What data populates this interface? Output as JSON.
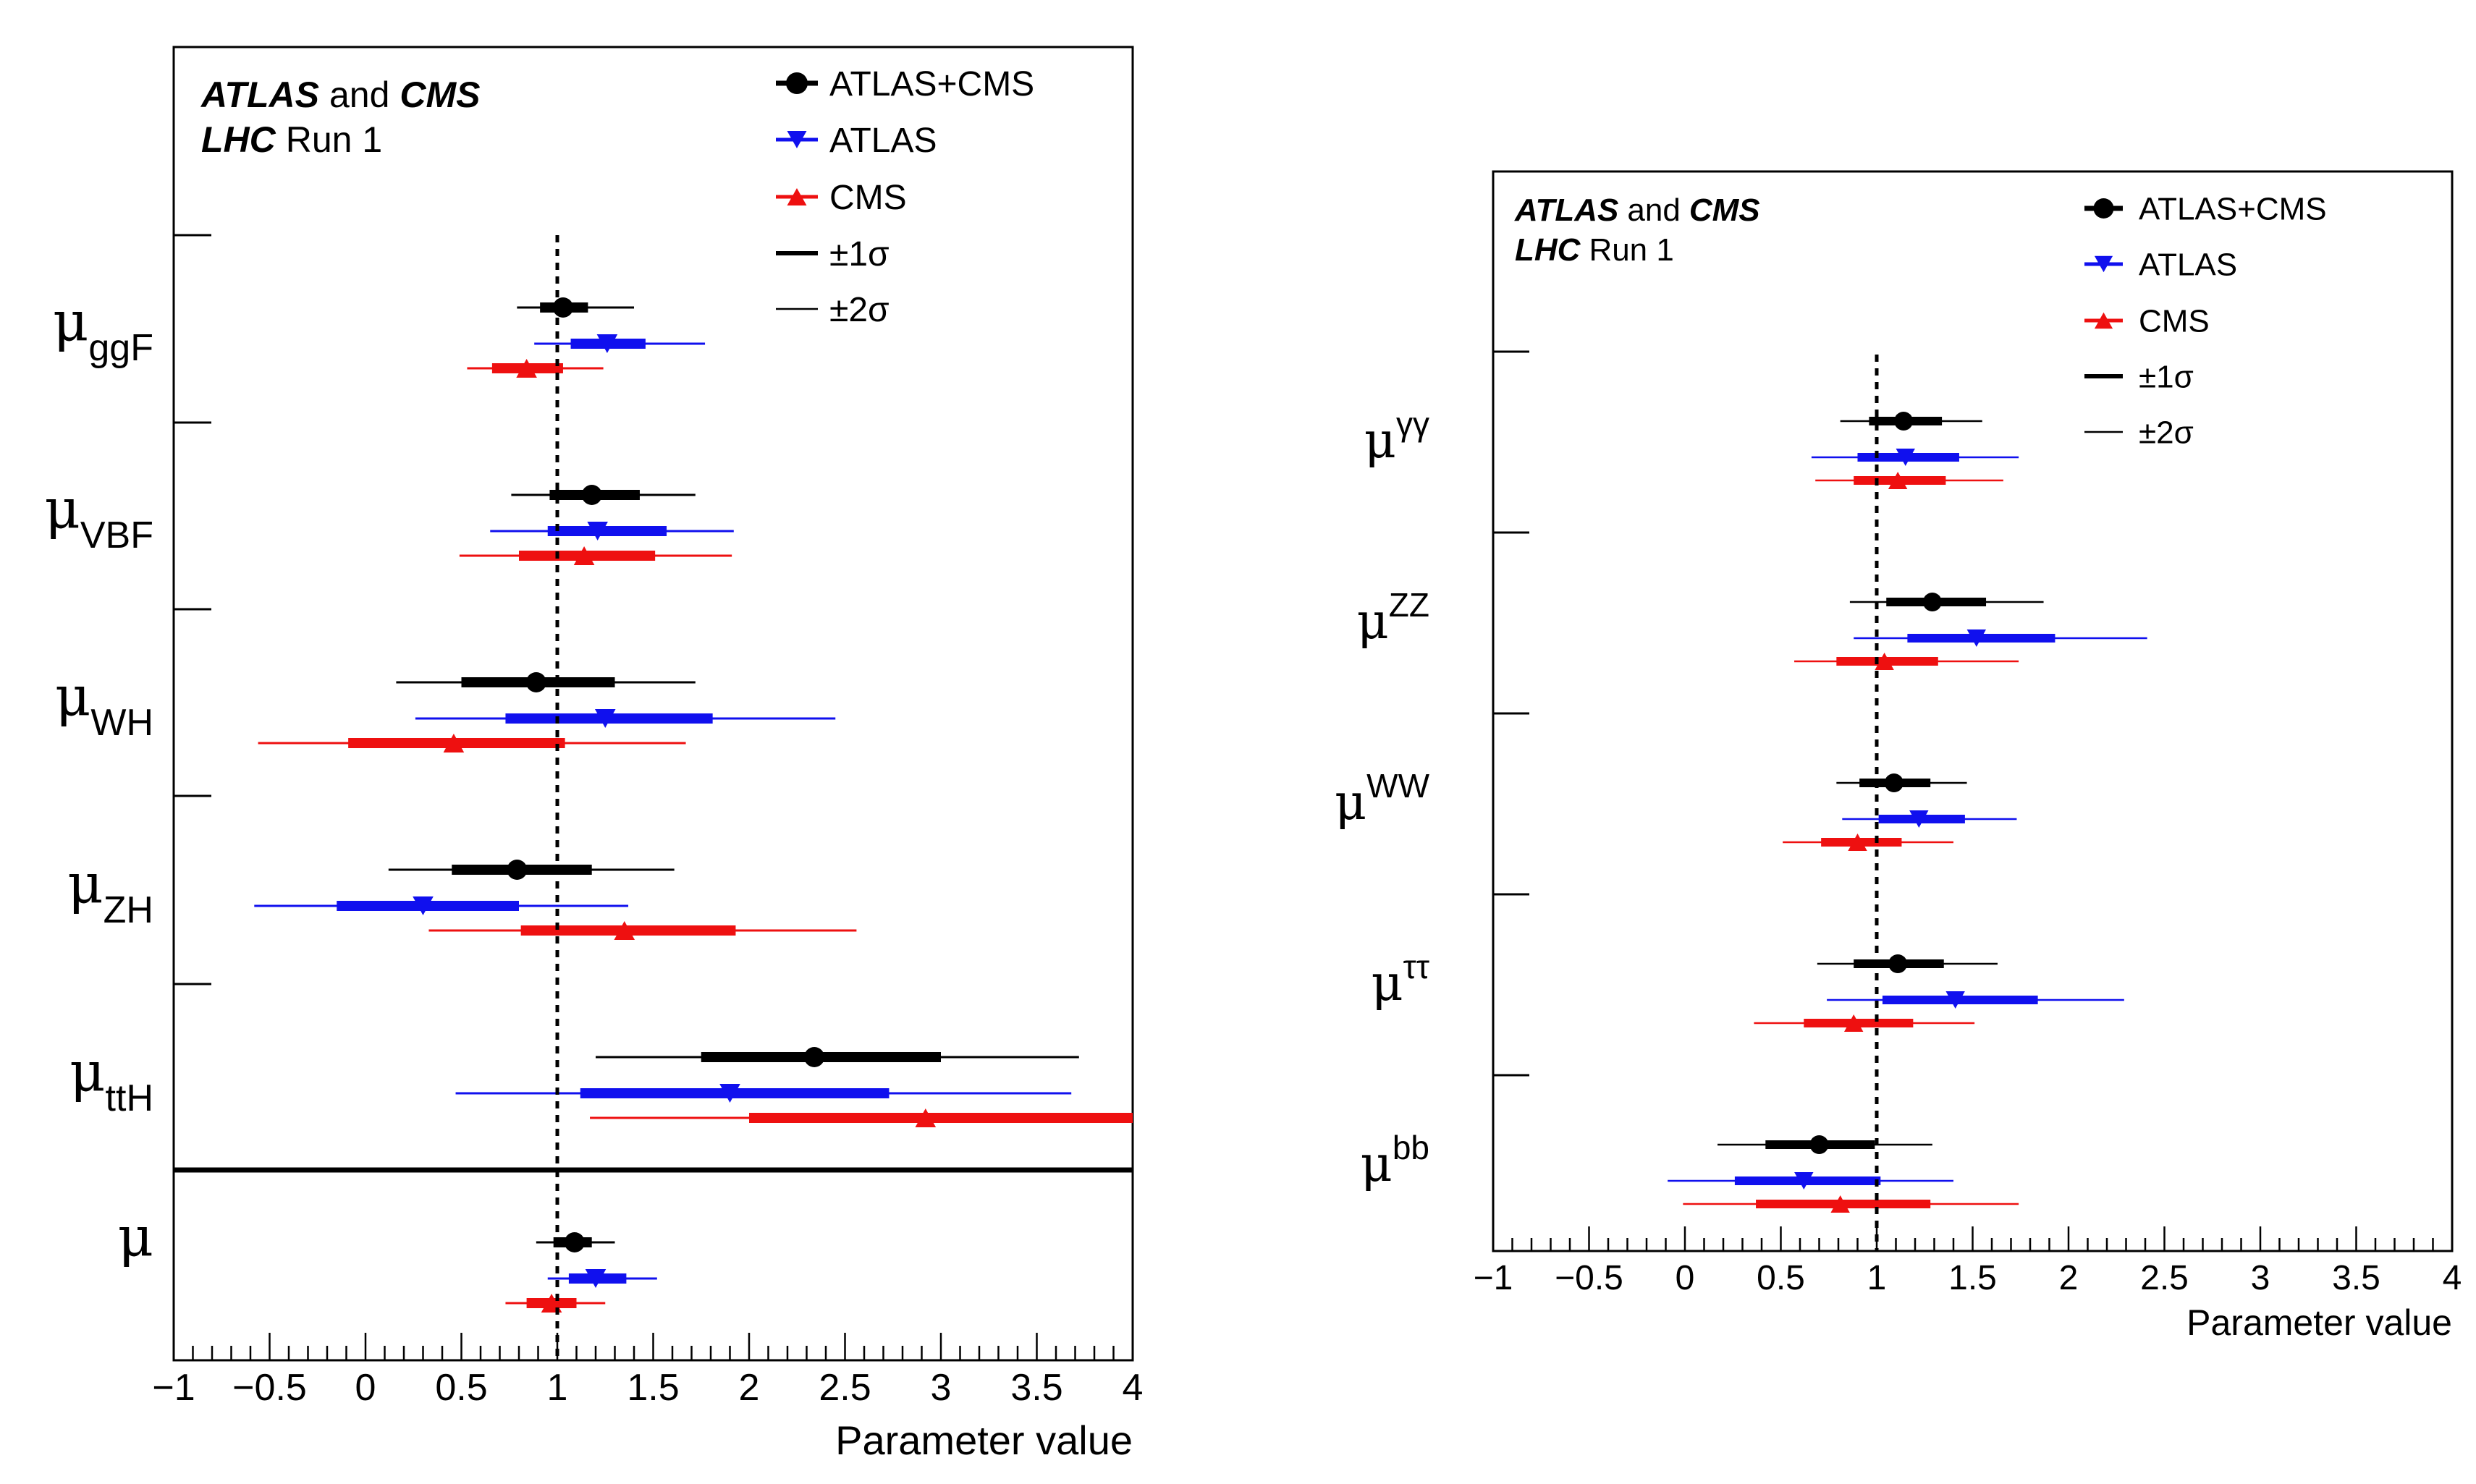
{
  "chart_data": [
    {
      "type": "scatter",
      "title_line1_bold": "ATLAS",
      "title_line1_mid": "and",
      "title_line1_bold2": "CMS",
      "title_line2_bold": "LHC",
      "title_line2_rest": "Run 1",
      "xlabel": "Parameter value",
      "xlim": [
        -1,
        4
      ],
      "xticks": [
        "−1",
        "−0.5",
        "0",
        "0.5",
        "1",
        "1.5",
        "2",
        "2.5",
        "3",
        "3.5",
        "4"
      ],
      "sm_line": 1,
      "legend": {
        "combined": "ATLAS+CMS",
        "atlas": "ATLAS",
        "cms": "CMS",
        "one_sigma": "±1σ",
        "two_sigma": "±2σ"
      },
      "colors": {
        "combined": "#000000",
        "atlas": "#1010ee",
        "cms": "#ee1010"
      },
      "parameters": [
        {
          "base": "μ",
          "sub": "ggF",
          "sup": "",
          "combined": {
            "v": 1.03,
            "s1": [
              0.91,
              1.16
            ],
            "s2": [
              0.79,
              1.4
            ]
          },
          "atlas": {
            "v": 1.26,
            "s1": [
              1.07,
              1.46
            ],
            "s2": [
              0.88,
              1.77
            ]
          },
          "cms": {
            "v": 0.84,
            "s1": [
              0.66,
              1.03
            ],
            "s2": [
              0.53,
              1.24
            ]
          }
        },
        {
          "base": "μ",
          "sub": "VBF",
          "sup": "",
          "combined": {
            "v": 1.18,
            "s1": [
              0.96,
              1.43
            ],
            "s2": [
              0.76,
              1.72
            ]
          },
          "atlas": {
            "v": 1.21,
            "s1": [
              0.95,
              1.57
            ],
            "s2": [
              0.65,
              1.92
            ]
          },
          "cms": {
            "v": 1.14,
            "s1": [
              0.8,
              1.51
            ],
            "s2": [
              0.49,
              1.91
            ]
          }
        },
        {
          "base": "μ",
          "sub": "WH",
          "sup": "",
          "combined": {
            "v": 0.89,
            "s1": [
              0.5,
              1.3
            ],
            "s2": [
              0.16,
              1.72
            ]
          },
          "atlas": {
            "v": 1.25,
            "s1": [
              0.73,
              1.81
            ],
            "s2": [
              0.26,
              2.45
            ]
          },
          "cms": {
            "v": 0.46,
            "s1": [
              -0.09,
              1.04
            ],
            "s2": [
              -0.56,
              1.67
            ]
          }
        },
        {
          "base": "μ",
          "sub": "ZH",
          "sup": "",
          "combined": {
            "v": 0.79,
            "s1": [
              0.45,
              1.18
            ],
            "s2": [
              0.12,
              1.61
            ]
          },
          "atlas": {
            "v": 0.3,
            "s1": [
              -0.15,
              0.8
            ],
            "s2": [
              -0.58,
              1.37
            ]
          },
          "cms": {
            "v": 1.35,
            "s1": [
              0.81,
              1.93
            ],
            "s2": [
              0.33,
              2.56
            ]
          }
        },
        {
          "base": "μ",
          "sub": "ttH",
          "sup": "",
          "combined": {
            "v": 2.34,
            "s1": [
              1.75,
              3.0
            ],
            "s2": [
              1.2,
              3.72
            ]
          },
          "atlas": {
            "v": 1.9,
            "s1": [
              1.12,
              2.73
            ],
            "s2": [
              0.47,
              3.68
            ]
          },
          "cms": {
            "v": 2.92,
            "s1": [
              2.0,
              4.0
            ],
            "s2": [
              1.17,
              4.0
            ]
          }
        },
        {
          "base": "μ",
          "sub": "",
          "sup": "",
          "combined": {
            "v": 1.09,
            "s1": [
              0.98,
              1.18
            ],
            "s2": [
              0.89,
              1.3
            ]
          },
          "atlas": {
            "v": 1.2,
            "s1": [
              1.06,
              1.36
            ],
            "s2": [
              0.95,
              1.52
            ]
          },
          "cms": {
            "v": 0.97,
            "s1": [
              0.84,
              1.1
            ],
            "s2": [
              0.73,
              1.25
            ]
          }
        }
      ]
    },
    {
      "type": "scatter",
      "title_line1_bold": "ATLAS",
      "title_line1_mid": "and",
      "title_line1_bold2": "CMS",
      "title_line2_bold": "LHC",
      "title_line2_rest": "Run 1",
      "xlabel": "Parameter value",
      "xlim": [
        -1,
        4
      ],
      "xticks": [
        "−1",
        "−0.5",
        "0",
        "0.5",
        "1",
        "1.5",
        "2",
        "2.5",
        "3",
        "3.5",
        "4"
      ],
      "sm_line": 1,
      "legend": {
        "combined": "ATLAS+CMS",
        "atlas": "ATLAS",
        "cms": "CMS",
        "one_sigma": "±1σ",
        "two_sigma": "±2σ"
      },
      "colors": {
        "combined": "#000000",
        "atlas": "#1010ee",
        "cms": "#ee1010"
      },
      "parameters": [
        {
          "base": "μ",
          "sub": "",
          "sup": "γγ",
          "combined": {
            "v": 1.14,
            "s1": [
              0.96,
              1.34
            ],
            "s2": [
              0.81,
              1.55
            ]
          },
          "atlas": {
            "v": 1.15,
            "s1": [
              0.9,
              1.43
            ],
            "s2": [
              0.66,
              1.74
            ]
          },
          "cms": {
            "v": 1.11,
            "s1": [
              0.88,
              1.36
            ],
            "s2": [
              0.68,
              1.66
            ]
          }
        },
        {
          "base": "μ",
          "sub": "",
          "sup": "ZZ",
          "combined": {
            "v": 1.29,
            "s1": [
              1.05,
              1.57
            ],
            "s2": [
              0.86,
              1.87
            ]
          },
          "atlas": {
            "v": 1.52,
            "s1": [
              1.16,
              1.93
            ],
            "s2": [
              0.88,
              2.41
            ]
          },
          "cms": {
            "v": 1.04,
            "s1": [
              0.79,
              1.32
            ],
            "s2": [
              0.57,
              1.74
            ]
          }
        },
        {
          "base": "μ",
          "sub": "",
          "sup": "WW",
          "combined": {
            "v": 1.09,
            "s1": [
              0.91,
              1.28
            ],
            "s2": [
              0.79,
              1.47
            ]
          },
          "atlas": {
            "v": 1.22,
            "s1": [
              1.01,
              1.46
            ],
            "s2": [
              0.82,
              1.73
            ]
          },
          "cms": {
            "v": 0.9,
            "s1": [
              0.71,
              1.13
            ],
            "s2": [
              0.51,
              1.4
            ]
          }
        },
        {
          "base": "μ",
          "sub": "",
          "sup": "ττ",
          "combined": {
            "v": 1.11,
            "s1": [
              0.88,
              1.35
            ],
            "s2": [
              0.69,
              1.63
            ]
          },
          "atlas": {
            "v": 1.41,
            "s1": [
              1.03,
              1.84
            ],
            "s2": [
              0.74,
              2.29
            ]
          },
          "cms": {
            "v": 0.88,
            "s1": [
              0.62,
              1.19
            ],
            "s2": [
              0.36,
              1.51
            ]
          }
        },
        {
          "base": "μ",
          "sub": "",
          "sup": "bb",
          "combined": {
            "v": 0.7,
            "s1": [
              0.42,
              0.99
            ],
            "s2": [
              0.17,
              1.29
            ]
          },
          "atlas": {
            "v": 0.62,
            "s1": [
              0.26,
              1.02
            ],
            "s2": [
              -0.09,
              1.4
            ]
          },
          "cms": {
            "v": 0.81,
            "s1": [
              0.37,
              1.28
            ],
            "s2": [
              -0.01,
              1.74
            ]
          }
        }
      ]
    }
  ]
}
